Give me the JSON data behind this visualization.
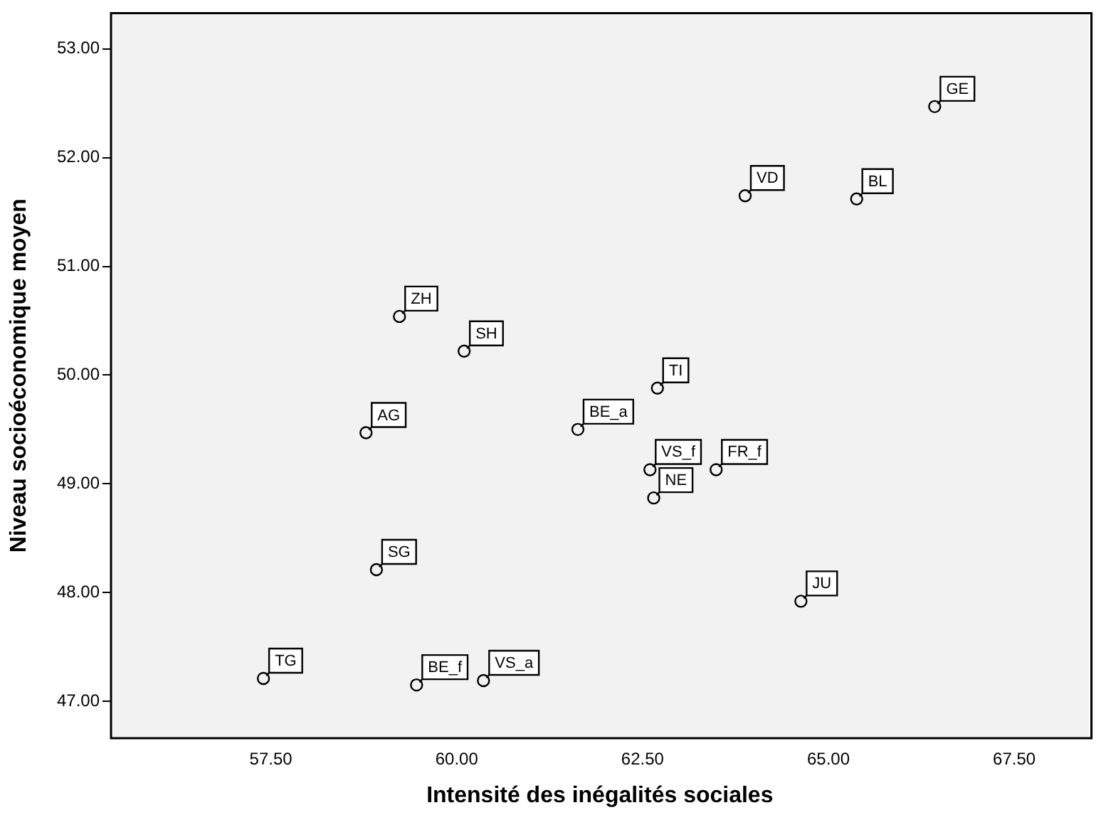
{
  "chart_data": {
    "type": "scatter",
    "xlabel": "Intensité des inégalités sociales",
    "ylabel": "Niveau socioéconomique moyen",
    "x": [
      66.43,
      63.88,
      65.38,
      59.23,
      60.1,
      62.7,
      58.78,
      61.63,
      62.6,
      63.49,
      62.65,
      58.92,
      64.63,
      57.4,
      59.46,
      60.36
    ],
    "values": [
      52.47,
      51.65,
      51.62,
      50.54,
      50.22,
      49.88,
      49.47,
      49.5,
      49.13,
      49.13,
      48.87,
      48.21,
      47.92,
      47.21,
      47.15,
      47.19
    ],
    "color": "#000000",
    "marker": "circle",
    "grid": false,
    "legend": false,
    "xlim": [
      55.35,
      68.5
    ],
    "ylim": [
      46.66,
      53.33
    ],
    "xticks": [
      {
        "value": 57.5,
        "label": "57.50"
      },
      {
        "value": 60,
        "label": "60.00"
      },
      {
        "value": 62.5,
        "label": "62.50"
      },
      {
        "value": 65,
        "label": "65.00"
      },
      {
        "value": 67.5,
        "label": "67.50"
      }
    ],
    "yticks": [
      {
        "value": 47,
        "label": "47.00"
      },
      {
        "value": 48,
        "label": "48.00"
      },
      {
        "value": 49,
        "label": "49.00"
      },
      {
        "value": 50,
        "label": "50.00"
      },
      {
        "value": 51,
        "label": "51.00"
      },
      {
        "value": 52,
        "label": "52.00"
      },
      {
        "value": 53,
        "label": "53.00"
      }
    ],
    "annotations": [
      {
        "text": "GE",
        "x": 66.43,
        "y": 52.47
      },
      {
        "text": "VD",
        "x": 63.88,
        "y": 51.65
      },
      {
        "text": "BL",
        "x": 65.38,
        "y": 51.62
      },
      {
        "text": "ZH",
        "x": 59.23,
        "y": 50.54
      },
      {
        "text": "SH",
        "x": 60.1,
        "y": 50.22
      },
      {
        "text": "TI",
        "x": 62.7,
        "y": 49.88
      },
      {
        "text": "AG",
        "x": 58.78,
        "y": 49.47
      },
      {
        "text": "BE_a",
        "x": 61.63,
        "y": 49.5
      },
      {
        "text": "VS_f",
        "x": 62.6,
        "y": 49.13
      },
      {
        "text": "FR_f",
        "x": 63.49,
        "y": 49.13
      },
      {
        "text": "NE",
        "x": 62.65,
        "y": 48.87
      },
      {
        "text": "SG",
        "x": 58.92,
        "y": 48.21
      },
      {
        "text": "JU",
        "x": 64.63,
        "y": 47.92
      },
      {
        "text": "TG",
        "x": 57.4,
        "y": 47.21
      },
      {
        "text": "BE_f",
        "x": 59.46,
        "y": 47.15
      },
      {
        "text": "VS_a",
        "x": 60.36,
        "y": 47.19
      }
    ]
  }
}
